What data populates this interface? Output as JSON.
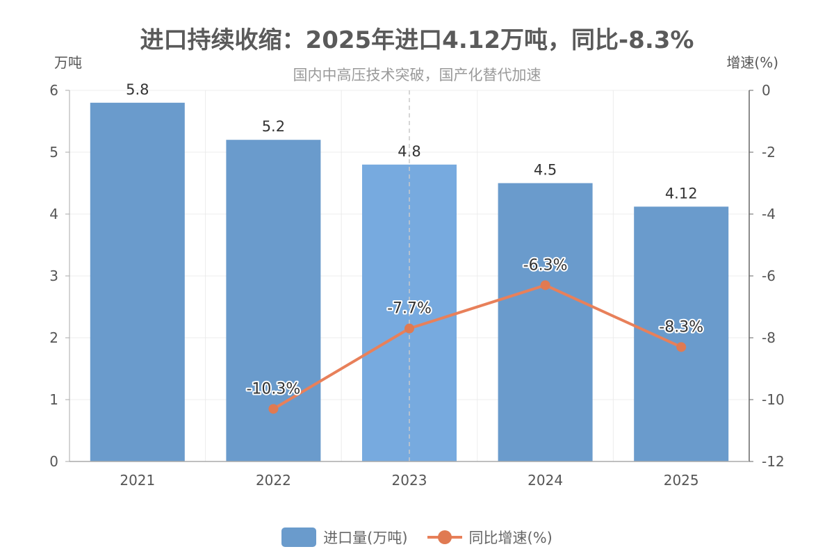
{
  "chart_data": {
    "type": "bar",
    "title": "进口持续收缩：2025年进口4.12万吨，同比-8.3%",
    "subtitle": "国内中高压技术突破，国产化替代加速",
    "categories": [
      "2021",
      "2022",
      "2023",
      "2024",
      "2025"
    ],
    "y_left": {
      "label": "万吨",
      "range": [
        0,
        6
      ],
      "ticks": [
        0,
        1,
        2,
        3,
        4,
        5,
        6
      ]
    },
    "y_right": {
      "label": "增速(%)",
      "range": [
        -12,
        0
      ],
      "ticks": [
        0,
        -2,
        -4,
        -6,
        -8,
        -10,
        -12
      ]
    },
    "grid": true,
    "legend_position": "bottom-center",
    "highlighted_category": "2023",
    "series": [
      {
        "name": "进口量(万吨)",
        "type": "bar",
        "axis": "left",
        "color": "#6a9bcc",
        "highlight_color": "#77aadf",
        "values": [
          5.8,
          5.2,
          4.8,
          4.5,
          4.12
        ],
        "labels": [
          "5.8",
          "5.2",
          "4.8",
          "4.5",
          "4.12"
        ]
      },
      {
        "name": "同比增速(%)",
        "type": "line",
        "axis": "right",
        "color": "#e8805a",
        "values": [
          null,
          -10.3,
          -7.7,
          -6.3,
          -8.3
        ],
        "labels": [
          "",
          "-10.3%",
          "-7.7%",
          "-6.3%",
          "-8.3%"
        ]
      }
    ]
  }
}
